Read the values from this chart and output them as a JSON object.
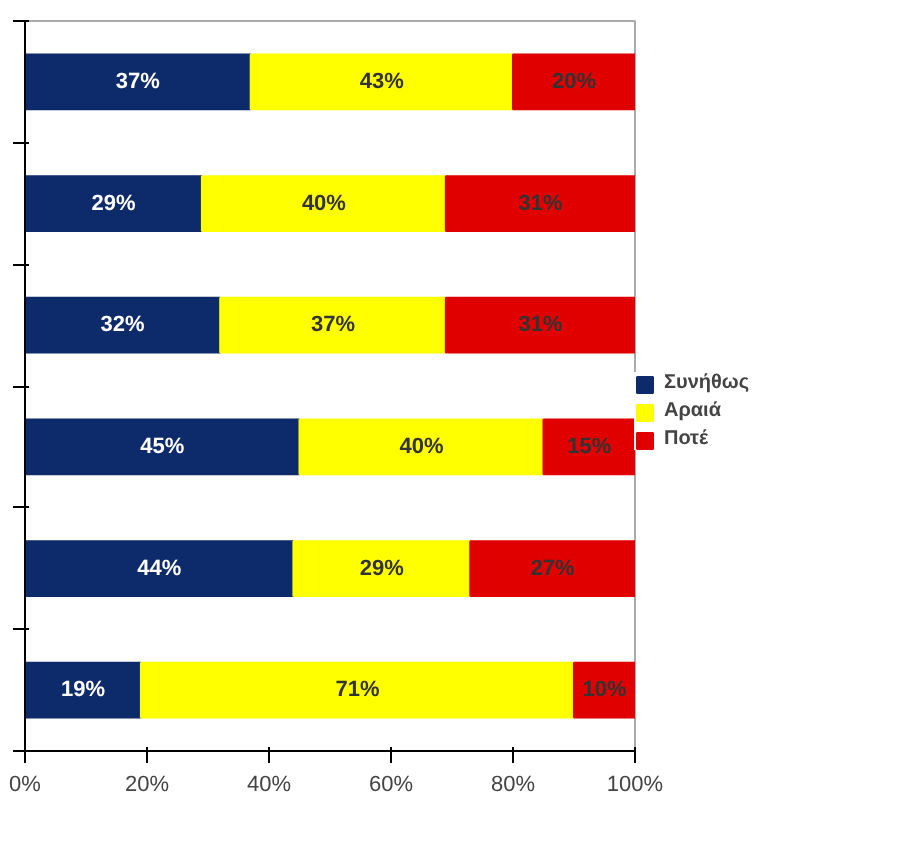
{
  "chart_data": {
    "type": "bar",
    "orientation": "horizontal",
    "stacked": true,
    "categories": [
      null,
      null,
      null,
      null,
      null,
      null
    ],
    "series": [
      {
        "name": "Συνήθως",
        "color": "#0d2a6b",
        "values": [
          37,
          29,
          32,
          45,
          44,
          19
        ],
        "value_labels": [
          "37%",
          "29%",
          "32%",
          "45%",
          "44%",
          "19%"
        ]
      },
      {
        "name": "Αραιά",
        "color": "#ffff00",
        "values": [
          43,
          40,
          37,
          40,
          29,
          71
        ],
        "value_labels": [
          "43%",
          "40%",
          "37%",
          "40%",
          "29%",
          "71%"
        ]
      },
      {
        "name": "Ποτέ",
        "color": "#e00000",
        "values": [
          20,
          31,
          31,
          15,
          27,
          10
        ],
        "value_labels": [
          "20%",
          "31%",
          "31%",
          "15%",
          "27%",
          "10%"
        ]
      }
    ],
    "xlim": [
      0,
      100
    ],
    "xticks": [
      {
        "value": 0,
        "label": "0%"
      },
      {
        "value": 20,
        "label": "20%"
      },
      {
        "value": 40,
        "label": "40%"
      },
      {
        "value": 60,
        "label": "60%"
      },
      {
        "value": 80,
        "label": "80%"
      },
      {
        "value": 100,
        "label": "100%"
      }
    ],
    "grid": false,
    "legend": "right"
  }
}
